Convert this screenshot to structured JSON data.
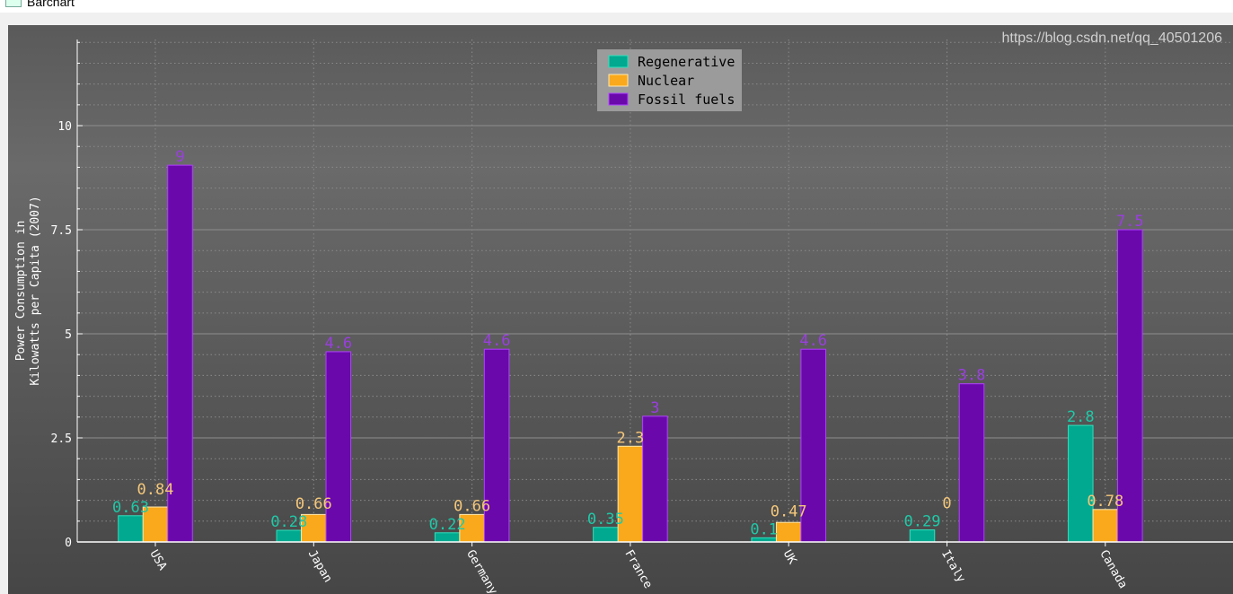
{
  "window": {
    "title": "Barchart"
  },
  "watermark": "https://blog.csdn.net/qq_40501206",
  "chart_data": {
    "type": "bar",
    "title": "",
    "xlabel": "",
    "ylabel_lines": [
      "Power Consumption in",
      "Kilowatts per Capita (2007)"
    ],
    "categories": [
      "USA",
      "Japan",
      "Germany",
      "France",
      "UK",
      "Italy",
      "Canada"
    ],
    "series": [
      {
        "name": "Regenerative",
        "color": "#00a98f",
        "values": [
          0.63,
          0.28,
          0.22,
          0.35,
          0.1,
          0.29,
          2.8
        ],
        "labels": [
          "0.63",
          "0.28",
          "0.22",
          "0.35",
          "0.1",
          "0.29",
          "2.8"
        ]
      },
      {
        "name": "Nuclear",
        "color": "#f9a91b",
        "values": [
          0.84,
          0.66,
          0.66,
          2.3,
          0.47,
          0,
          0.78
        ],
        "labels": [
          "0.84",
          "0.66",
          "0.66",
          "2.3",
          "0.47",
          "0",
          "0.78"
        ]
      },
      {
        "name": "Fossil fuels",
        "color": "#6a08ac",
        "values": [
          9.05,
          4.57,
          4.63,
          3.02,
          4.63,
          3.8,
          7.5
        ],
        "labels": [
          "9",
          "4.6",
          "4.6",
          "3",
          "4.6",
          "3.8",
          "7.5"
        ]
      }
    ],
    "ylim": [
      0,
      12.07
    ],
    "yticks": [
      0,
      2.5,
      5,
      7.5,
      10
    ],
    "ytick_labels": [
      "0",
      "2.5",
      "5",
      "7.5",
      "10"
    ],
    "grid": true,
    "legend_position": "top-center",
    "label_colors": [
      "#1fc9a8",
      "#f5c77a",
      "#9a3ee0"
    ]
  }
}
